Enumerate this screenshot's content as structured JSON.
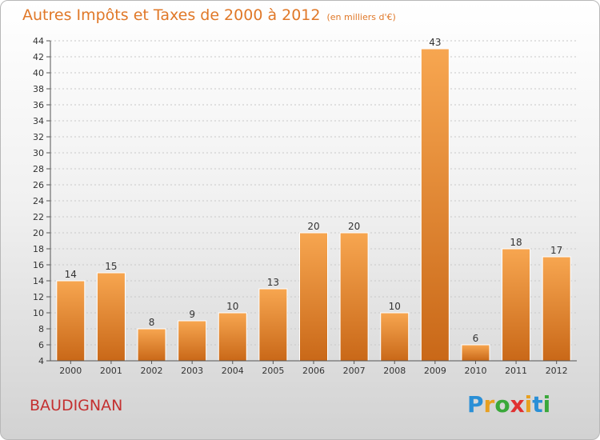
{
  "title": "Autres Impôts et Taxes de 2000 à 2012",
  "subtitle": "(en milliers d'€)",
  "location": "BAUDIGNAN",
  "logo": {
    "letters": [
      "P",
      "r",
      "o",
      "x",
      "i",
      "t",
      "i"
    ],
    "colors": [
      "#2a8fd6",
      "#e8a020",
      "#3aa83a",
      "#e03030",
      "#e8a020",
      "#2a8fd6",
      "#3aa83a"
    ]
  },
  "colors": {
    "title": "#e07828",
    "location": "#c43030",
    "bar_top": "#f7a650",
    "bar_bottom": "#c96818"
  },
  "chart_data": {
    "type": "bar",
    "categories": [
      "2000",
      "2001",
      "2002",
      "2003",
      "2004",
      "2005",
      "2006",
      "2007",
      "2008",
      "2009",
      "2010",
      "2011",
      "2012"
    ],
    "values": [
      14,
      15,
      8,
      9,
      10,
      13,
      20,
      20,
      10,
      43,
      6,
      18,
      17
    ],
    "ylim": [
      4,
      44
    ],
    "yticks": [
      4,
      6,
      8,
      10,
      12,
      14,
      16,
      18,
      20,
      22,
      24,
      26,
      28,
      30,
      32,
      34,
      36,
      38,
      40,
      42,
      44
    ],
    "grid": true,
    "xlabel": "",
    "ylabel": ""
  }
}
